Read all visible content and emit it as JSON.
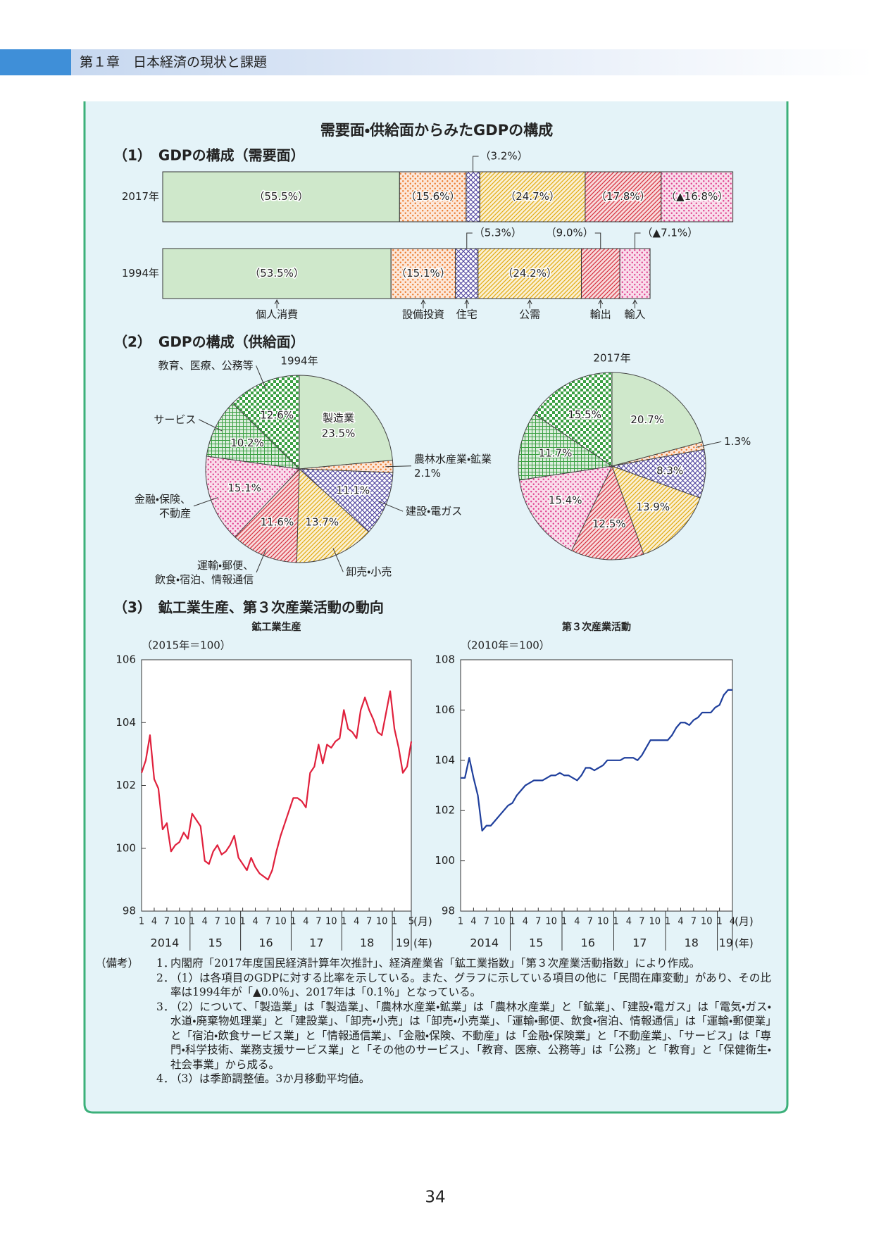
{
  "header": {
    "chapter": "第１章　日本経済の現状と課題"
  },
  "box_title": "需要面・供給面からみたGDPの構成",
  "section_headings": [
    "（1）　GDPの構成（需要面）",
    "（2）　GDPの構成（供給面）",
    "（3）　鉱工業生産、第３次産業活動の動向"
  ],
  "chart_data": [
    {
      "type": "stacked-bar",
      "categories": [
        "2017年",
        "1994年"
      ],
      "series": [
        {
          "name": "個人消費",
          "color": "#cfe8cb",
          "pattern": "solid",
          "values": [
            55.5,
            53.5
          ],
          "value_labels": [
            "（55.5%）",
            "（53.5%）"
          ]
        },
        {
          "name": "設備投資",
          "color": "#ec7a2c",
          "pattern": "dots",
          "values": [
            15.6,
            15.1
          ],
          "value_labels": [
            "（15.6%）",
            "（15.1%）"
          ]
        },
        {
          "name": "住宅",
          "color": "#4b3f9c",
          "pattern": "cross",
          "values": [
            3.2,
            5.3
          ],
          "value_labels": [
            "（3.2%）",
            "（5.3%）"
          ]
        },
        {
          "name": "公需",
          "color": "#e2ab10",
          "pattern": "hatch",
          "values": [
            24.7,
            24.2
          ],
          "value_labels": [
            "（24.7%）",
            "（24.2%）"
          ]
        },
        {
          "name": "輸出",
          "color": "#d6303e",
          "pattern": "hatch",
          "values": [
            17.8,
            9.0
          ],
          "value_labels": [
            "（17.8%）",
            "（9.0%）"
          ]
        },
        {
          "name": "輸入",
          "color": "#e0408e",
          "pattern": "dots",
          "values": [
            -16.8,
            -7.1
          ],
          "value_labels": [
            "（▲16.8%）",
            "（▲7.1%）"
          ]
        }
      ]
    },
    {
      "type": "pie",
      "title": "1994年",
      "categories": [
        "製造業",
        "農林水産業・鉱業",
        "建設・電ガス",
        "卸売・小売",
        "運輸・郵便、\n飲食・宿泊、情報通信",
        "金融・保険、\n不動産",
        "サービス",
        "教育、医療、公務等"
      ],
      "values": [
        23.5,
        2.1,
        11.1,
        13.7,
        11.6,
        15.1,
        10.2,
        12.6
      ],
      "value_labels": [
        "23.5%",
        "2.1%",
        "11.1%",
        "13.7%",
        "11.6%",
        "15.1%",
        "10.2%",
        "12.6%"
      ],
      "colors": [
        "#cfe8cb",
        "#ec7a2c",
        "#4b3f9c",
        "#e2ab10",
        "#d6303e",
        "#e0408e",
        "#3ba043",
        "#3ba043"
      ],
      "patterns": [
        "solid",
        "dots",
        "cross",
        "hatch",
        "hatch",
        "dots",
        "grid",
        "checker"
      ]
    },
    {
      "type": "pie",
      "title": "2017年",
      "values": [
        20.7,
        1.3,
        8.3,
        13.9,
        12.5,
        15.4,
        11.7,
        15.5
      ],
      "value_labels": [
        "20.7%",
        "1.3%",
        "8.3%",
        "13.9%",
        "12.5%",
        "15.4%",
        "11.7%",
        "15.5%"
      ],
      "colors": [
        "#cfe8cb",
        "#ec7a2c",
        "#4b3f9c",
        "#e2ab10",
        "#d6303e",
        "#e0408e",
        "#3ba043",
        "#3ba043"
      ],
      "patterns": [
        "solid",
        "dots",
        "cross",
        "hatch",
        "hatch",
        "dots",
        "grid",
        "checker"
      ]
    },
    {
      "type": "line",
      "title": "鉱工業生産",
      "unit_label": "（2015年＝100）",
      "color": "#e0203c",
      "x": [
        "2014-01",
        "2014-02",
        "2014-03",
        "2014-04",
        "2014-05",
        "2014-06",
        "2014-07",
        "2014-08",
        "2014-09",
        "2014-10",
        "2014-11",
        "2014-12",
        "2015-01",
        "2015-02",
        "2015-03",
        "2015-04",
        "2015-05",
        "2015-06",
        "2015-07",
        "2015-08",
        "2015-09",
        "2015-10",
        "2015-11",
        "2015-12",
        "2016-01",
        "2016-02",
        "2016-03",
        "2016-04",
        "2016-05",
        "2016-06",
        "2016-07",
        "2016-08",
        "2016-09",
        "2016-10",
        "2016-11",
        "2016-12",
        "2017-01",
        "2017-02",
        "2017-03",
        "2017-04",
        "2017-05",
        "2017-06",
        "2017-07",
        "2017-08",
        "2017-09",
        "2017-10",
        "2017-11",
        "2017-12",
        "2018-01",
        "2018-02",
        "2018-03",
        "2018-04",
        "2018-05",
        "2018-06",
        "2018-07",
        "2018-08",
        "2018-09",
        "2018-10",
        "2018-11",
        "2018-12",
        "2019-01",
        "2019-02",
        "2019-03",
        "2019-04",
        "2019-05"
      ],
      "values": [
        102.4,
        102.8,
        103.6,
        102.2,
        101.9,
        100.6,
        100.8,
        99.9,
        100.1,
        100.2,
        100.5,
        100.3,
        101.1,
        100.9,
        100.7,
        99.6,
        99.5,
        99.9,
        100.1,
        99.8,
        99.9,
        100.1,
        100.4,
        99.7,
        99.5,
        99.3,
        99.7,
        99.4,
        99.2,
        99.1,
        99.0,
        99.3,
        99.9,
        100.4,
        100.8,
        101.2,
        101.6,
        101.6,
        101.5,
        101.3,
        102.4,
        102.6,
        103.3,
        102.7,
        103.3,
        103.2,
        103.4,
        103.5,
        104.4,
        103.8,
        103.7,
        103.5,
        104.4,
        104.8,
        104.4,
        104.1,
        103.7,
        103.6,
        104.3,
        105.0,
        103.8,
        103.2,
        102.4,
        102.6,
        103.4
      ],
      "ylim": [
        98,
        106
      ],
      "yticks": [
        98,
        100,
        102,
        104,
        106
      ],
      "month_ticks": [
        {
          "value": "2014-01",
          "label": "1"
        },
        {
          "value": "2014-04",
          "label": "4"
        },
        {
          "value": "2014-07",
          "label": "7"
        },
        {
          "value": "2014-10",
          "label": "10"
        },
        {
          "value": "2015-01",
          "label": "1"
        },
        {
          "value": "2015-04",
          "label": "4"
        },
        {
          "value": "2015-07",
          "label": "7"
        },
        {
          "value": "2015-10",
          "label": "10"
        },
        {
          "value": "2016-01",
          "label": "1"
        },
        {
          "value": "2016-04",
          "label": "4"
        },
        {
          "value": "2016-07",
          "label": "7"
        },
        {
          "value": "2016-10",
          "label": "10"
        },
        {
          "value": "2017-01",
          "label": "1"
        },
        {
          "value": "2017-04",
          "label": "4"
        },
        {
          "value": "2017-07",
          "label": "7"
        },
        {
          "value": "2017-10",
          "label": "10"
        },
        {
          "value": "2018-01",
          "label": "1"
        },
        {
          "value": "2018-04",
          "label": "4"
        },
        {
          "value": "2018-07",
          "label": "7"
        },
        {
          "value": "2018-10",
          "label": "10"
        },
        {
          "value": "2019-01",
          "label": "1"
        },
        {
          "value": "2019-05",
          "label": "5"
        }
      ],
      "year_ticks": [
        2014,
        {
          "value": 2015,
          "label": "15"
        },
        {
          "value": 2016,
          "label": "16"
        },
        {
          "value": 2017,
          "label": "17"
        },
        {
          "value": 2018,
          "label": "18"
        },
        {
          "value": 2019,
          "label": "19"
        }
      ],
      "x_unit_month": "(月)",
      "x_unit_year": "(年)"
    },
    {
      "type": "line",
      "title": "第３次産業活動",
      "unit_label": "（2010年＝100）",
      "color": "#1f3f9c",
      "x": [
        "2014-01",
        "2014-02",
        "2014-03",
        "2014-04",
        "2014-05",
        "2014-06",
        "2014-07",
        "2014-08",
        "2014-09",
        "2014-10",
        "2014-11",
        "2014-12",
        "2015-01",
        "2015-02",
        "2015-03",
        "2015-04",
        "2015-05",
        "2015-06",
        "2015-07",
        "2015-08",
        "2015-09",
        "2015-10",
        "2015-11",
        "2015-12",
        "2016-01",
        "2016-02",
        "2016-03",
        "2016-04",
        "2016-05",
        "2016-06",
        "2016-07",
        "2016-08",
        "2016-09",
        "2016-10",
        "2016-11",
        "2016-12",
        "2017-01",
        "2017-02",
        "2017-03",
        "2017-04",
        "2017-05",
        "2017-06",
        "2017-07",
        "2017-08",
        "2017-09",
        "2017-10",
        "2017-11",
        "2017-12",
        "2018-01",
        "2018-02",
        "2018-03",
        "2018-04",
        "2018-05",
        "2018-06",
        "2018-07",
        "2018-08",
        "2018-09",
        "2018-10",
        "2018-11",
        "2018-12",
        "2019-01",
        "2019-02",
        "2019-03",
        "2019-04"
      ],
      "values": [
        103.3,
        103.3,
        104.1,
        103.3,
        102.6,
        101.2,
        101.4,
        101.4,
        101.6,
        101.8,
        102.0,
        102.2,
        102.3,
        102.6,
        102.8,
        103.0,
        103.1,
        103.2,
        103.2,
        103.2,
        103.3,
        103.4,
        103.4,
        103.5,
        103.4,
        103.4,
        103.3,
        103.2,
        103.4,
        103.7,
        103.7,
        103.6,
        103.7,
        103.8,
        104.0,
        104.0,
        104.0,
        104.0,
        104.1,
        104.1,
        104.1,
        104.0,
        104.2,
        104.5,
        104.8,
        104.8,
        104.8,
        104.8,
        104.8,
        105.0,
        105.3,
        105.5,
        105.5,
        105.4,
        105.6,
        105.7,
        105.9,
        105.9,
        105.9,
        106.1,
        106.2,
        106.6,
        106.8,
        106.8
      ],
      "ylim": [
        98,
        108
      ],
      "yticks": [
        98,
        100,
        102,
        104,
        106,
        108
      ],
      "month_ticks": [
        {
          "value": "2014-01",
          "label": "1"
        },
        {
          "value": "2014-04",
          "label": "4"
        },
        {
          "value": "2014-07",
          "label": "7"
        },
        {
          "value": "2014-10",
          "label": "10"
        },
        {
          "value": "2015-01",
          "label": "1"
        },
        {
          "value": "2015-04",
          "label": "4"
        },
        {
          "value": "2015-07",
          "label": "7"
        },
        {
          "value": "2015-10",
          "label": "10"
        },
        {
          "value": "2016-01",
          "label": "1"
        },
        {
          "value": "2016-04",
          "label": "4"
        },
        {
          "value": "2016-07",
          "label": "7"
        },
        {
          "value": "2016-10",
          "label": "10"
        },
        {
          "value": "2017-01",
          "label": "1"
        },
        {
          "value": "2017-04",
          "label": "4"
        },
        {
          "value": "2017-07",
          "label": "7"
        },
        {
          "value": "2017-10",
          "label": "10"
        },
        {
          "value": "2018-01",
          "label": "1"
        },
        {
          "value": "2018-04",
          "label": "4"
        },
        {
          "value": "2018-07",
          "label": "7"
        },
        {
          "value": "2018-10",
          "label": "10"
        },
        {
          "value": "2019-01",
          "label": "1"
        },
        {
          "value": "2019-04",
          "label": "4"
        }
      ],
      "year_ticks": [
        2014,
        {
          "value": 2015,
          "label": "15"
        },
        {
          "value": 2016,
          "label": "16"
        },
        {
          "value": 2017,
          "label": "17"
        },
        {
          "value": 2018,
          "label": "18"
        },
        {
          "value": 2019,
          "label": "19"
        }
      ],
      "x_unit_month": "(月)",
      "x_unit_year": "(年)"
    }
  ],
  "notes": {
    "label": "（備考）",
    "items": [
      {
        "number": "1．",
        "text": "内閣府「2017年度国民経済計算年次推計」、経済産業省「鉱工業指数」「第３次産業活動指数」により作成。"
      },
      {
        "number": "2．",
        "text": "（1）は各項目のGDPに対する比率を示している。また、グラフに示している項目の他に「民間在庫変動」があり、その比率は1994年が「▲0.0％」、2017年は「0.1％」となっている。"
      },
      {
        "number": "3．",
        "text": "（2）について、「製造業」は「製造業」、「農林水産業・鉱業」は「農林水産業」と「鉱業」、「建設・電ガス」は「電気・ガス・水道・廃棄物処理業」と「建設業」、「卸売・小売」は「卸売・小売業」、「運輸・郵便、飲食・宿泊、情報通信」は「運輸・郵便業」と「宿泊・飲食サービス業」と「情報通信業」、「金融・保険、不動産」は「金融・保険業」と「不動産業」、「サービス」は「専門・科学技術、業務支援サービス業」と「その他のサービス」、「教育、医療、公務等」は「公務」と「教育」と「保健衛生・社会事業」から成る。"
      },
      {
        "number": "4．",
        "text": "（3）は季節調整値。3か月移動平均値。"
      }
    ]
  },
  "page_number": "34"
}
